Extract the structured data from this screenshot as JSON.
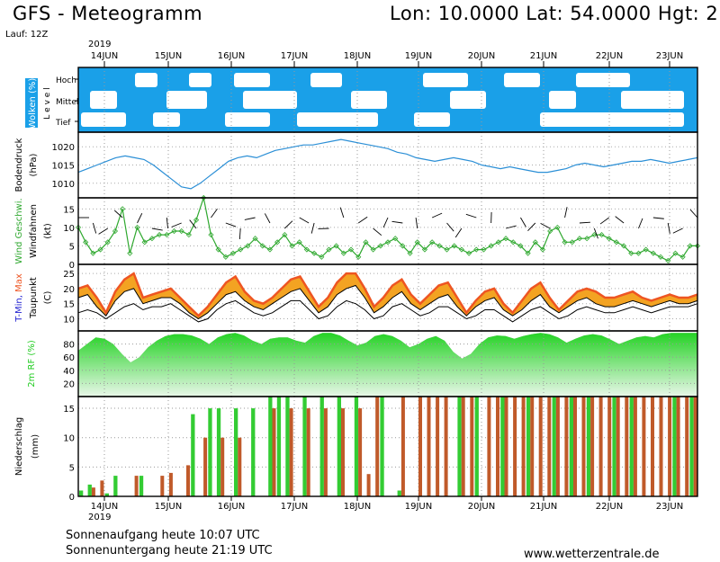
{
  "header": {
    "title": "GFS - Meteogramm",
    "coords": "Lon: 10.0000  Lat: 54.0000  Hgt: 2",
    "run": "Lauf: 12Z"
  },
  "footer": {
    "sunrise": "Sonnenaufgang heute 10:07 UTC",
    "sunset": "Sonnenuntergang heute 21:19 UTC",
    "website": "www.wetterzentrale.de"
  },
  "colors": {
    "sky": "#1aa0e8",
    "pressure": "#2b8fd6",
    "wind": "#2fa82f",
    "tmax": "#ee5522",
    "tmid": "#f3a322",
    "tmin": "#1d1dd0",
    "rh": "#22cc22",
    "precip_green": "#33cc33",
    "precip_brown": "#c05a2a"
  },
  "chart_data": [
    {
      "type": "area",
      "panel": "clouds",
      "ylabel": "Wolken (%)",
      "ylabel2": "L e v e l",
      "levels": [
        "Hoch",
        "Mittel",
        "Tief"
      ],
      "x": [
        "14JUN",
        "15JUN",
        "16JUN",
        "17JUN",
        "18JUN",
        "19JUN",
        "20JUN",
        "21JUN",
        "22JUN",
        "23JUN"
      ],
      "year": "2019"
    },
    {
      "type": "line",
      "panel": "pressure",
      "ylabel": "Bodendruck",
      "unit": "(hPa)",
      "yticks": [
        1010,
        1015,
        1020
      ],
      "ylim": [
        1006,
        1024
      ],
      "values": [
        1013,
        1014,
        1015,
        1016,
        1017,
        1017.5,
        1017,
        1016.5,
        1015,
        1013,
        1011,
        1009,
        1008.5,
        1010,
        1012,
        1014,
        1016,
        1017,
        1017.5,
        1017,
        1018,
        1019,
        1019.5,
        1020,
        1020.5,
        1020.5,
        1021,
        1021.5,
        1022,
        1021.5,
        1021,
        1020.5,
        1020,
        1019.5,
        1018.5,
        1018,
        1017,
        1016.5,
        1016,
        1016.5,
        1017,
        1016.5,
        1016,
        1015,
        1014.5,
        1014,
        1014.5,
        1014,
        1013.5,
        1013,
        1013,
        1013.5,
        1014,
        1015,
        1015.5,
        1015,
        1014.5,
        1015,
        1015.5,
        1016,
        1016,
        1016.5,
        1016,
        1015.5,
        1016,
        1016.5,
        1017
      ]
    },
    {
      "type": "line",
      "panel": "wind",
      "ylabel": "Wind Geschwi.",
      "ylabel2": "Windfahnen",
      "unit": "(kt)",
      "yticks": [
        0,
        5,
        10,
        15
      ],
      "ylim": [
        0,
        18
      ],
      "values": [
        10,
        6,
        3,
        4,
        6,
        9,
        15,
        3,
        10,
        6,
        7,
        8,
        8,
        9,
        9,
        8,
        12,
        18,
        8,
        4,
        2,
        3,
        4,
        5,
        7,
        5,
        4,
        6,
        8,
        5,
        6,
        4,
        3,
        2,
        4,
        5,
        3,
        4,
        2,
        6,
        4,
        5,
        6,
        7,
        5,
        3,
        6,
        4,
        6,
        5,
        4,
        5,
        4,
        3,
        4,
        4,
        5,
        6,
        7,
        6,
        5,
        3,
        6,
        4,
        9,
        10,
        6,
        6,
        7,
        7,
        8,
        8,
        7,
        6,
        5,
        3,
        3,
        4,
        3,
        2,
        1,
        3,
        2,
        5,
        5
      ]
    },
    {
      "type": "area",
      "panel": "temperature",
      "ylabel": "T-Min, Max",
      "ylabel2": "Taupunkt",
      "unit": "(C)",
      "yticks": [
        10,
        15,
        20,
        25
      ],
      "ylim": [
        6,
        28
      ],
      "tmax": [
        20,
        21,
        17,
        12,
        19,
        23,
        25,
        17,
        18,
        19,
        20,
        17,
        14,
        11,
        14,
        18,
        22,
        24,
        19,
        16,
        15,
        17,
        20,
        23,
        24,
        19,
        14,
        17,
        22,
        25,
        25,
        20,
        14,
        17,
        21,
        23,
        18,
        15,
        18,
        21,
        22,
        17,
        12,
        16,
        19,
        20,
        15,
        12,
        16,
        20,
        22,
        17,
        13,
        16,
        19,
        20,
        19,
        17,
        17,
        18,
        19,
        17,
        16,
        17,
        18,
        17,
        17,
        18
      ],
      "tmin": [
        17,
        18,
        14,
        11,
        16,
        19,
        20,
        15,
        16,
        17,
        17,
        15,
        12,
        10,
        12,
        15,
        18,
        19,
        16,
        14,
        13,
        15,
        17,
        19,
        20,
        16,
        12,
        14,
        18,
        20,
        21,
        17,
        12,
        14,
        17,
        19,
        15,
        13,
        15,
        17,
        18,
        14,
        11,
        14,
        16,
        17,
        13,
        11,
        13,
        16,
        18,
        14,
        12,
        14,
        16,
        17,
        15,
        14,
        14,
        15,
        16,
        15,
        14,
        15,
        16,
        15,
        15,
        16
      ],
      "dew": [
        12,
        13,
        12,
        10,
        12,
        14,
        15,
        13,
        14,
        14,
        15,
        13,
        11,
        9,
        10,
        13,
        15,
        16,
        14,
        12,
        11,
        12,
        14,
        16,
        16,
        13,
        10,
        11,
        14,
        16,
        15,
        13,
        10,
        11,
        14,
        15,
        13,
        11,
        12,
        14,
        14,
        12,
        10,
        11,
        13,
        13,
        11,
        9,
        11,
        13,
        14,
        12,
        10,
        11,
        13,
        14,
        13,
        12,
        12,
        13,
        14,
        13,
        12,
        13,
        14,
        14,
        14,
        15
      ]
    },
    {
      "type": "area",
      "panel": "humidity",
      "ylabel": "2m RF (%)",
      "yticks": [
        20,
        40,
        60,
        80
      ],
      "ylim": [
        0,
        100
      ],
      "values": [
        70,
        80,
        90,
        88,
        80,
        65,
        52,
        60,
        75,
        85,
        92,
        95,
        95,
        93,
        88,
        80,
        90,
        95,
        97,
        93,
        85,
        80,
        88,
        90,
        90,
        85,
        82,
        92,
        97,
        97,
        93,
        85,
        78,
        82,
        92,
        95,
        92,
        85,
        75,
        80,
        88,
        92,
        85,
        68,
        58,
        65,
        80,
        90,
        93,
        92,
        88,
        92,
        95,
        97,
        95,
        90,
        82,
        88,
        93,
        95,
        93,
        87,
        80,
        85,
        90,
        92,
        90,
        95,
        97,
        97,
        97,
        97
      ]
    },
    {
      "type": "bar",
      "panel": "precipitation",
      "ylabel": "Niederschlag",
      "unit": "(mm)",
      "yticks": [
        0,
        5,
        10,
        15
      ],
      "ylim": [
        0,
        17
      ],
      "x": [
        "14JUN",
        "15JUN",
        "16JUN",
        "17JUN",
        "18JUN",
        "19JUN",
        "20JUN",
        "21JUN",
        "22JUN",
        "23JUN"
      ],
      "year": "2019",
      "green": [
        1,
        2,
        0,
        0.5,
        3.5,
        0,
        0,
        3.5,
        0,
        0,
        0,
        0,
        0,
        14,
        0,
        15,
        15,
        0,
        15,
        0,
        15,
        0,
        17,
        17,
        17,
        0,
        17,
        0,
        17,
        0,
        17,
        0,
        17,
        0,
        0,
        17,
        0,
        1,
        0,
        0,
        0,
        0,
        0,
        0,
        17,
        0,
        17,
        0,
        0,
        17,
        0,
        0,
        17,
        0,
        0,
        17,
        0,
        17,
        0,
        17,
        0,
        0,
        17,
        0,
        17,
        0,
        0,
        0,
        0,
        17,
        0,
        17
      ],
      "brown": [
        0,
        1.5,
        2.7,
        0,
        0,
        0,
        3.5,
        0,
        0,
        3.5,
        4,
        0,
        5.3,
        0,
        10,
        0,
        10,
        0,
        10,
        0,
        0,
        0,
        15,
        0,
        15,
        0,
        15,
        0,
        15,
        0,
        15,
        0,
        15,
        3.8,
        17,
        0,
        0,
        17,
        0,
        17,
        17,
        17,
        17,
        0,
        17,
        17,
        0,
        17,
        17,
        17,
        17,
        17,
        17,
        17,
        17,
        17,
        17,
        17,
        17,
        17,
        17,
        17,
        17,
        17,
        17,
        17,
        17,
        17,
        17,
        17,
        17,
        17
      ]
    }
  ]
}
